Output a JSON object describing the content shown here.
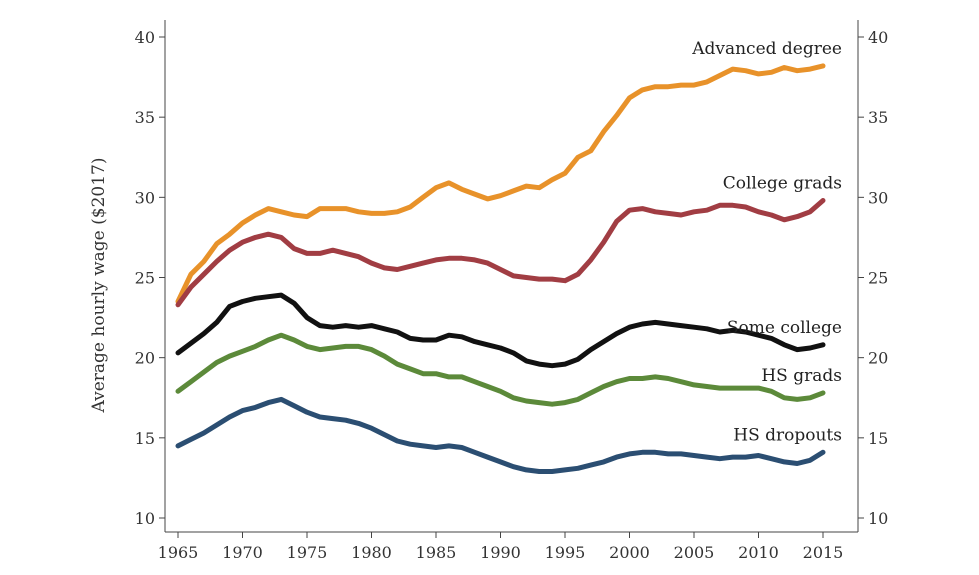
{
  "chart_data": {
    "type": "line",
    "ylabel": "Average hourly wage ($2017)",
    "xlim": [
      1965,
      2015
    ],
    "ylim": [
      10,
      40
    ],
    "xticks": [
      1965,
      1970,
      1975,
      1980,
      1985,
      1990,
      1995,
      2000,
      2005,
      2010,
      2015
    ],
    "yticks": [
      10,
      15,
      20,
      25,
      30,
      35,
      40
    ],
    "x": [
      1965,
      1966,
      1967,
      1968,
      1969,
      1970,
      1971,
      1972,
      1973,
      1974,
      1975,
      1976,
      1977,
      1978,
      1979,
      1980,
      1981,
      1982,
      1983,
      1984,
      1985,
      1986,
      1987,
      1988,
      1989,
      1990,
      1991,
      1992,
      1993,
      1994,
      1995,
      1996,
      1997,
      1998,
      1999,
      2000,
      2001,
      2002,
      2003,
      2004,
      2005,
      2006,
      2007,
      2008,
      2009,
      2010,
      2011,
      2012,
      2013,
      2014,
      2015
    ],
    "series": [
      {
        "name": "Advanced degree",
        "color": "#e8922a",
        "values": [
          23.5,
          25.2,
          26.0,
          27.1,
          27.7,
          28.4,
          28.9,
          29.3,
          29.1,
          28.9,
          28.8,
          29.3,
          29.3,
          29.3,
          29.1,
          29.0,
          29.0,
          29.1,
          29.4,
          30.0,
          30.6,
          30.9,
          30.5,
          30.2,
          29.9,
          30.1,
          30.4,
          30.7,
          30.6,
          31.1,
          31.5,
          32.5,
          32.9,
          34.1,
          35.1,
          36.2,
          36.7,
          36.9,
          36.9,
          37.0,
          37.0,
          37.2,
          37.6,
          38.0,
          37.9,
          37.7,
          37.8,
          38.1,
          37.9,
          38.0,
          38.2
        ]
      },
      {
        "name": "College grads",
        "color": "#a13d43",
        "values": [
          23.3,
          24.4,
          25.2,
          26.0,
          26.7,
          27.2,
          27.5,
          27.7,
          27.5,
          26.8,
          26.5,
          26.5,
          26.7,
          26.5,
          26.3,
          25.9,
          25.6,
          25.5,
          25.7,
          25.9,
          26.1,
          26.2,
          26.2,
          26.1,
          25.9,
          25.5,
          25.1,
          25.0,
          24.9,
          24.9,
          24.8,
          25.2,
          26.1,
          27.2,
          28.5,
          29.2,
          29.3,
          29.1,
          29.0,
          28.9,
          29.1,
          29.2,
          29.5,
          29.5,
          29.4,
          29.1,
          28.9,
          28.6,
          28.8,
          29.1,
          29.8
        ]
      },
      {
        "name": "Some college",
        "color": "#111111",
        "values": [
          20.3,
          20.9,
          21.5,
          22.2,
          23.2,
          23.5,
          23.7,
          23.8,
          23.9,
          23.4,
          22.5,
          22.0,
          21.9,
          22.0,
          21.9,
          22.0,
          21.8,
          21.6,
          21.2,
          21.1,
          21.1,
          21.4,
          21.3,
          21.0,
          20.8,
          20.6,
          20.3,
          19.8,
          19.6,
          19.5,
          19.6,
          19.9,
          20.5,
          21.0,
          21.5,
          21.9,
          22.1,
          22.2,
          22.1,
          22.0,
          21.9,
          21.8,
          21.6,
          21.7,
          21.6,
          21.4,
          21.2,
          20.8,
          20.5,
          20.6,
          20.8
        ]
      },
      {
        "name": "HS grads",
        "color": "#5c8a3a",
        "values": [
          17.9,
          18.5,
          19.1,
          19.7,
          20.1,
          20.4,
          20.7,
          21.1,
          21.4,
          21.1,
          20.7,
          20.5,
          20.6,
          20.7,
          20.7,
          20.5,
          20.1,
          19.6,
          19.3,
          19.0,
          19.0,
          18.8,
          18.8,
          18.5,
          18.2,
          17.9,
          17.5,
          17.3,
          17.2,
          17.1,
          17.2,
          17.4,
          17.8,
          18.2,
          18.5,
          18.7,
          18.7,
          18.8,
          18.7,
          18.5,
          18.3,
          18.2,
          18.1,
          18.1,
          18.1,
          18.1,
          17.9,
          17.5,
          17.4,
          17.5,
          17.8
        ]
      },
      {
        "name": "HS dropouts",
        "color": "#2b4e72",
        "values": [
          14.5,
          14.9,
          15.3,
          15.8,
          16.3,
          16.7,
          16.9,
          17.2,
          17.4,
          17.0,
          16.6,
          16.3,
          16.2,
          16.1,
          15.9,
          15.6,
          15.2,
          14.8,
          14.6,
          14.5,
          14.4,
          14.5,
          14.4,
          14.1,
          13.8,
          13.5,
          13.2,
          13.0,
          12.9,
          12.9,
          13.0,
          13.1,
          13.3,
          13.5,
          13.8,
          14.0,
          14.1,
          14.1,
          14.0,
          14.0,
          13.9,
          13.8,
          13.7,
          13.8,
          13.8,
          13.9,
          13.7,
          13.5,
          13.4,
          13.6,
          14.1
        ]
      }
    ]
  }
}
